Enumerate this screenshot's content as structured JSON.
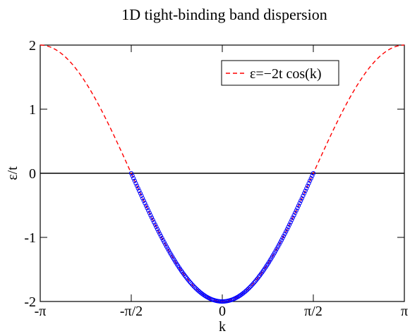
{
  "chart_data": {
    "type": "line",
    "title": "1D tight-binding band dispersion",
    "xlabel": "k",
    "ylabel": "ε/t",
    "xlim": [
      -3.14159,
      3.14159
    ],
    "ylim": [
      -2,
      2
    ],
    "xticks": [
      {
        "value": -3.14159,
        "label": "-π"
      },
      {
        "value": -1.5708,
        "label": "-π/2"
      },
      {
        "value": 0,
        "label": "0"
      },
      {
        "value": 1.5708,
        "label": "π/2"
      },
      {
        "value": 3.14159,
        "label": "π"
      }
    ],
    "yticks": [
      {
        "value": -2,
        "label": "-2"
      },
      {
        "value": -1,
        "label": "-1"
      },
      {
        "value": 0,
        "label": "0"
      },
      {
        "value": 1,
        "label": "1"
      },
      {
        "value": 2,
        "label": "2"
      }
    ],
    "legend_placement": "top-right",
    "series": [
      {
        "name": "ε=−2t cos(k)",
        "style": "dashed",
        "color": "#ff0000",
        "formula": "-2*cos(k)",
        "x": [
          -3.14159,
          -2.74889,
          -2.35619,
          -1.9635,
          -1.5708,
          -1.1781,
          -0.7854,
          -0.3927,
          0,
          0.3927,
          0.7854,
          1.1781,
          1.5708,
          1.9635,
          2.35619,
          2.74889,
          3.14159
        ],
        "y": [
          2,
          1.848,
          1.414,
          0.765,
          0,
          -0.765,
          -1.414,
          -1.848,
          -2,
          -1.848,
          -1.414,
          -0.765,
          0,
          0.765,
          1.414,
          1.848,
          2
        ]
      },
      {
        "style": "markers",
        "color": "#0000ff",
        "formula": "-2*cos(k)",
        "x_range": [
          -1.5708,
          1.5708
        ],
        "note": "occupied states, markers along curve between -π/2 and π/2"
      }
    ],
    "reference_line": {
      "y": 0,
      "color": "#000000"
    }
  }
}
